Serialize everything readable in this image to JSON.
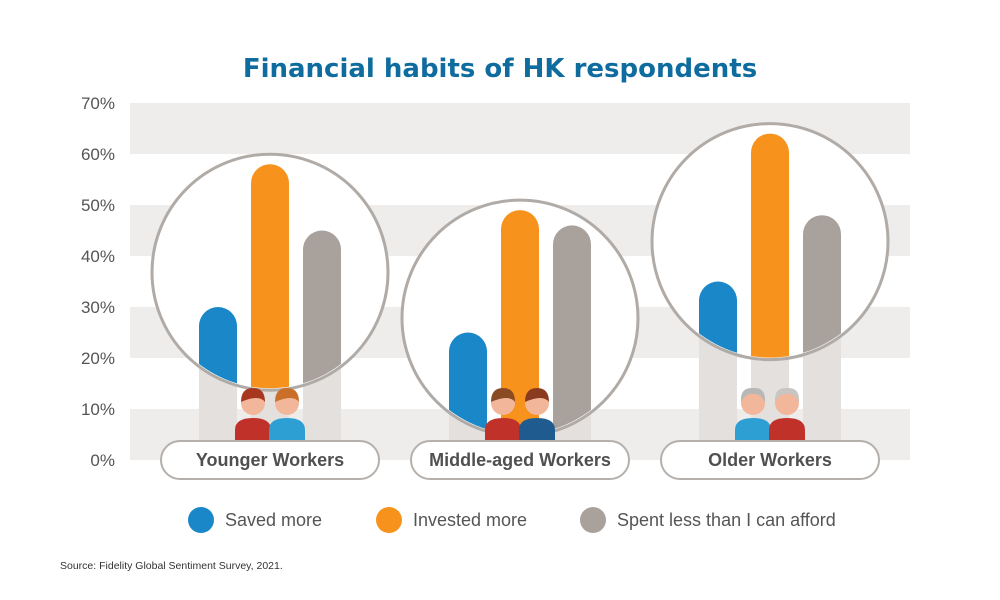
{
  "chart_data": {
    "type": "bar",
    "title": "Financial habits of HK respondents",
    "categories": [
      "Younger Workers",
      "Middle-aged Workers",
      "Older Workers"
    ],
    "series": [
      {
        "name": "Saved more",
        "values": [
          30,
          25,
          35
        ],
        "color": "#1a87c9"
      },
      {
        "name": "Invested more",
        "values": [
          58,
          49,
          64
        ],
        "color": "#f7931d"
      },
      {
        "name": "Spent less than I can afford",
        "values": [
          45,
          46,
          48
        ],
        "color": "#a9a29c"
      }
    ],
    "ylim": [
      0,
      70
    ],
    "yticks": [
      "0%",
      "10%",
      "20%",
      "30%",
      "40%",
      "50%",
      "60%",
      "70%"
    ],
    "grid": "alternating horizontal bands",
    "legend_position": "bottom"
  },
  "source": "Source: Fidelity Global Sentiment Survey, 2021.",
  "colors": {
    "title": "#0f6c9e",
    "band": "#efedec",
    "ghost_bar": "#e3e0de",
    "circle": "#b0aba6",
    "pill_border": "#b5b0ab"
  },
  "icons": [
    "younger-workers-icon",
    "middle-aged-workers-icon",
    "older-workers-icon"
  ]
}
